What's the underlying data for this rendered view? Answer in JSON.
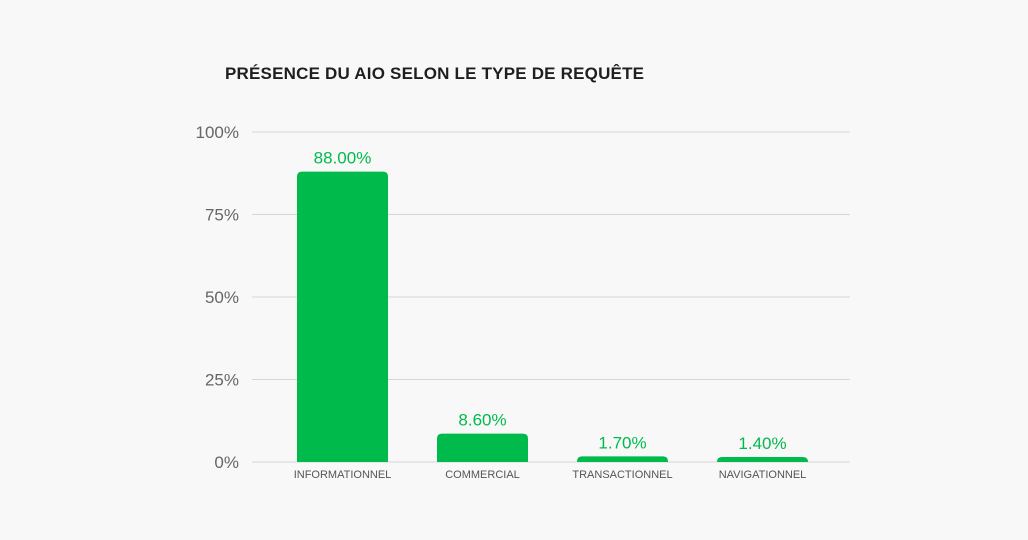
{
  "chart_data": {
    "type": "bar",
    "title": "PRÉSENCE DU AIO SELON LE TYPE DE REQUÊTE",
    "categories": [
      "INFORMATIONNEL",
      "COMMERCIAL",
      "TRANSACTIONNEL",
      "NAVIGATIONNEL"
    ],
    "values": [
      88.0,
      8.6,
      1.7,
      1.4
    ],
    "value_labels": [
      "88.00%",
      "8.60%",
      "1.70%",
      "1.40%"
    ],
    "xlabel": "",
    "ylabel": "",
    "ylim": [
      0,
      100
    ],
    "yticks": [
      0,
      25,
      50,
      75,
      100
    ],
    "ytick_labels": [
      "0%",
      "25%",
      "50%",
      "75%",
      "100%"
    ],
    "grid": true,
    "legend": "none",
    "colors": {
      "bar": "#00bb4c",
      "data_label": "#00bb4c",
      "grid": "#d6d6d6",
      "background": "#f8f8f8"
    }
  }
}
